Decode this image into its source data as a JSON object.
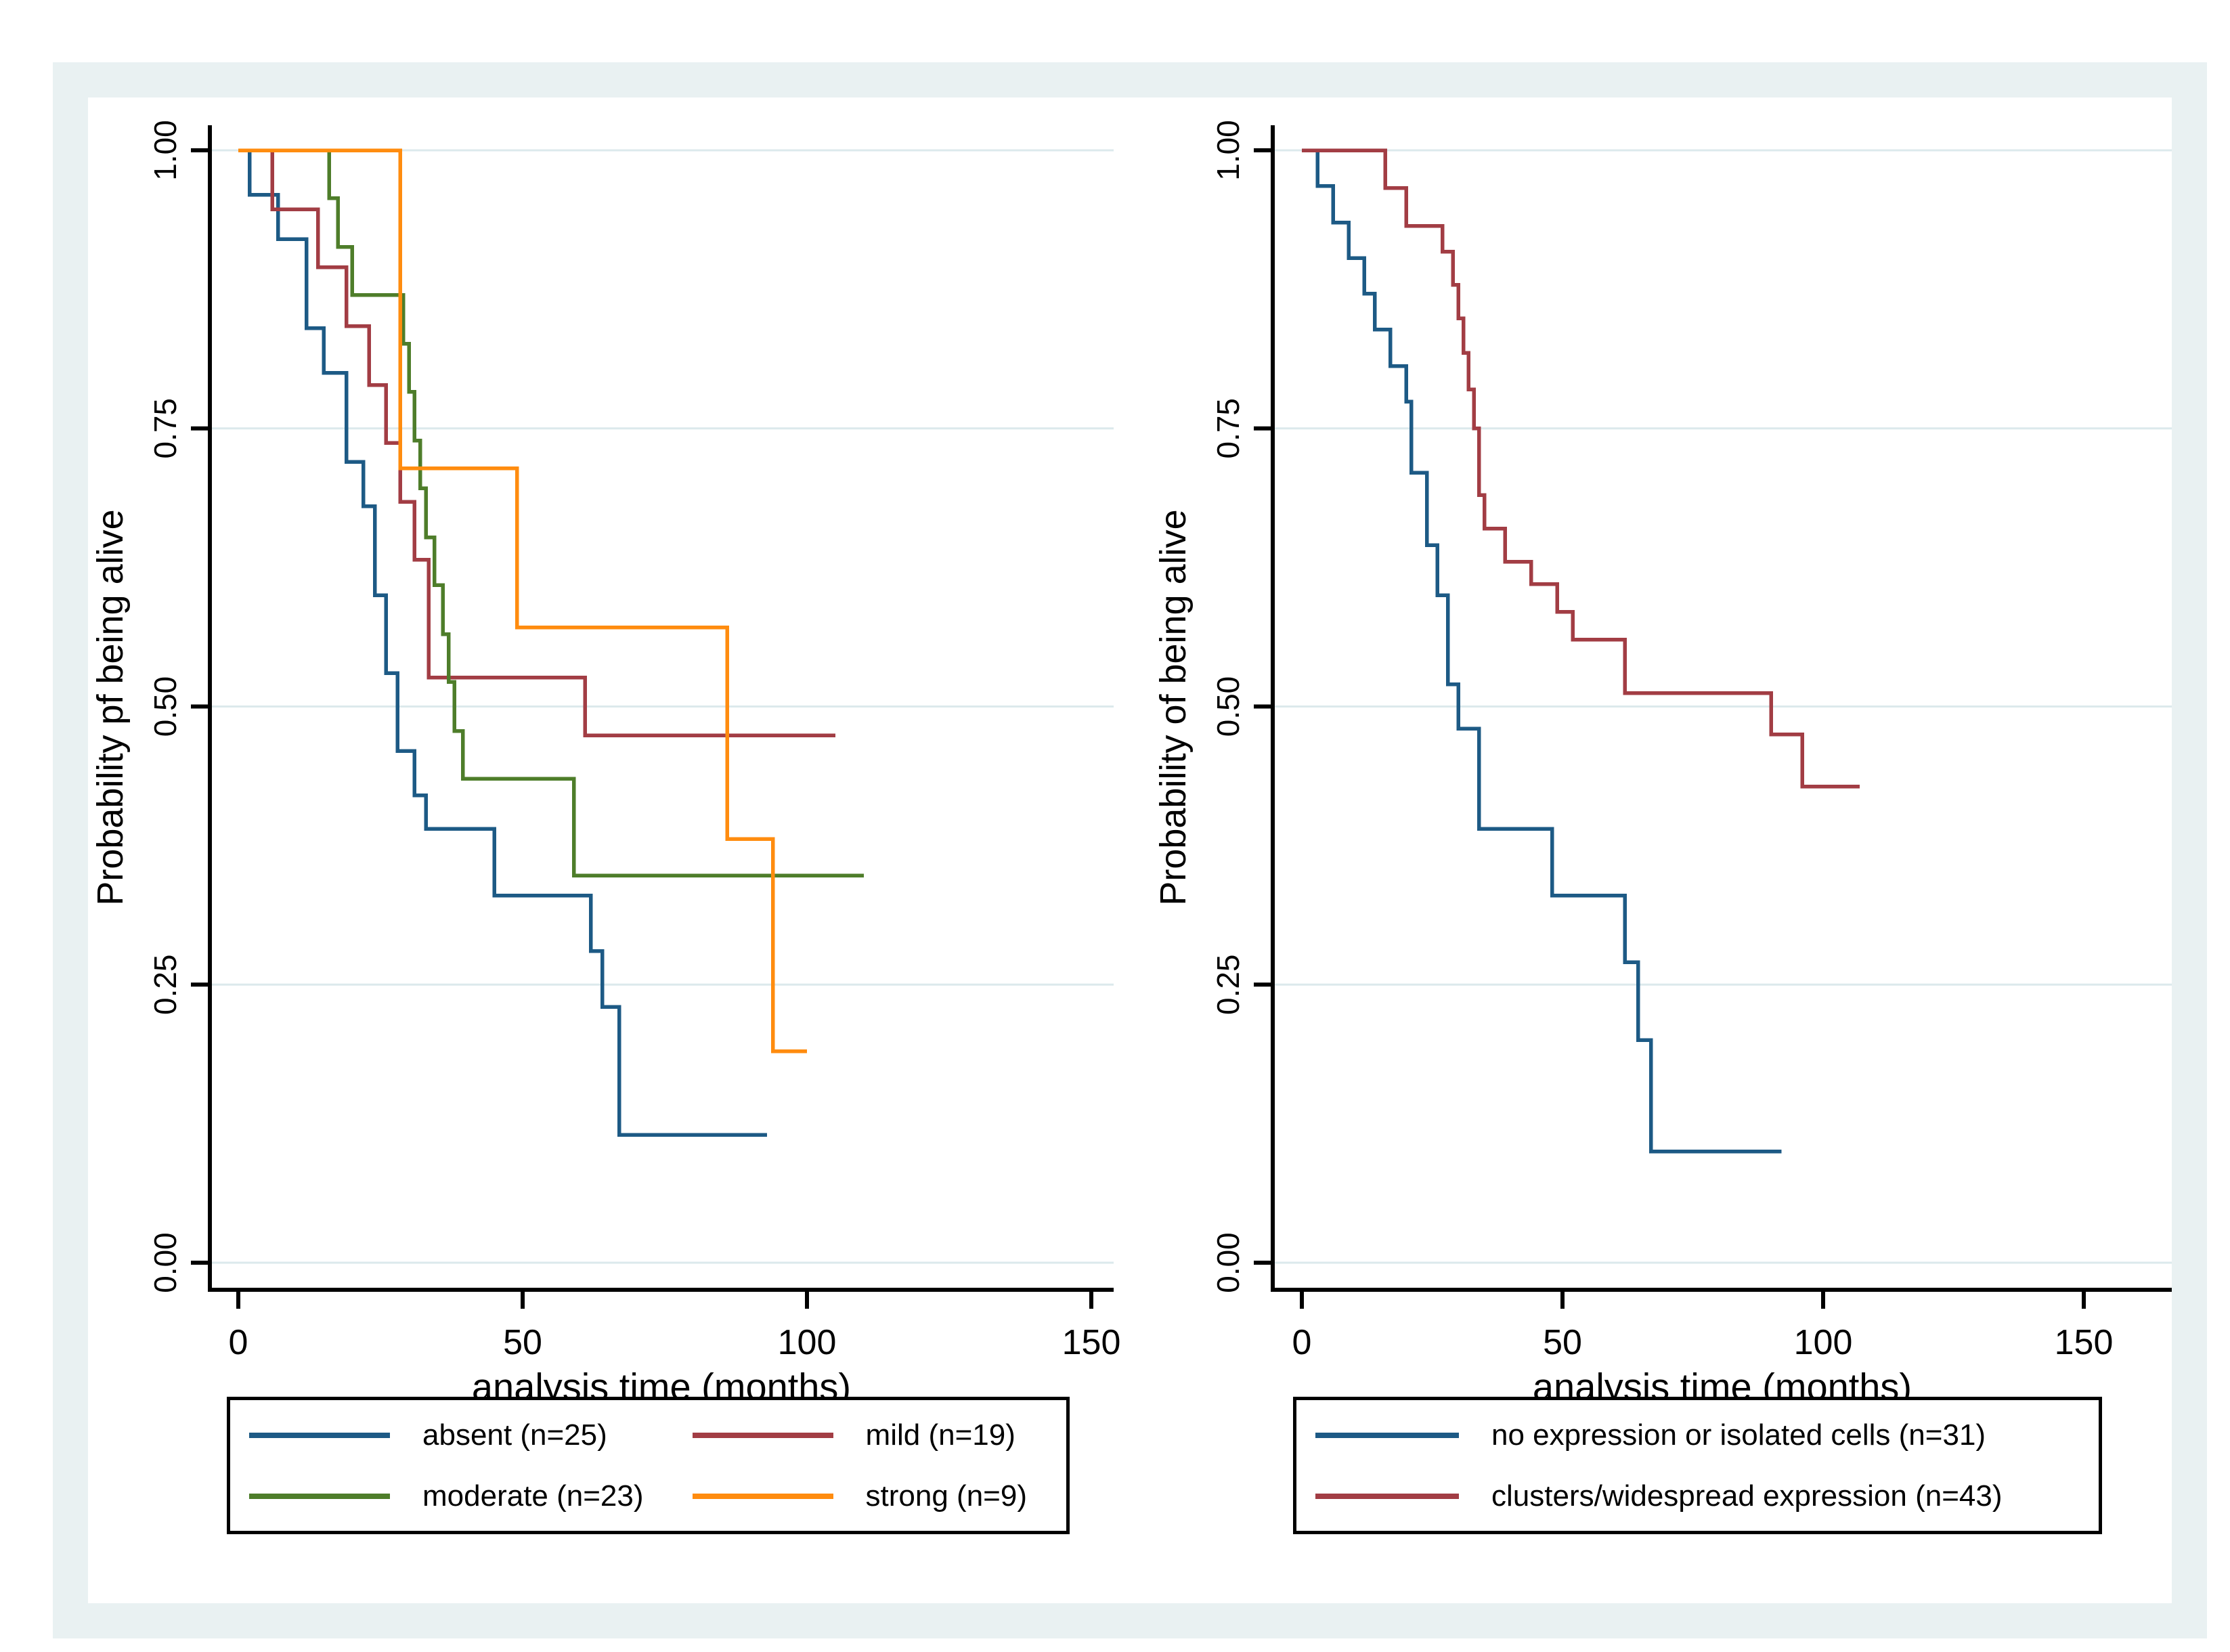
{
  "figure": {
    "background_color": "#ffffff",
    "frame_color": "#e9f1f2",
    "plot_background": "#ffffff",
    "grid_color": "#dce9ec",
    "axis_color": "#000000",
    "text_color": "#000000"
  },
  "chart_data": [
    {
      "type": "line",
      "subtype": "kaplan-meier-step",
      "title": "",
      "xlabel": "analysis time (months)",
      "ylabel": "Probability pf being alive",
      "xlim": [
        0,
        154
      ],
      "ylim": [
        0,
        1
      ],
      "xticks": [
        0,
        50,
        100,
        150
      ],
      "ytick_labels": [
        "0.00",
        "0.25",
        "0.50",
        "0.75",
        "1.00"
      ],
      "ytick_values": [
        0,
        0.25,
        0.5,
        0.75,
        1
      ],
      "grid": "horizontal",
      "legend_position": "bottom",
      "legend_columns": 2,
      "series": [
        {
          "name": "absent (n=25)",
          "n": 25,
          "color": "#1d5a85",
          "points": [
            [
              0,
              1.0
            ],
            [
              2,
              0.96
            ],
            [
              7,
              0.92
            ],
            [
              12,
              0.84
            ],
            [
              15,
              0.8
            ],
            [
              19,
              0.72
            ],
            [
              22,
              0.68
            ],
            [
              24,
              0.6
            ],
            [
              26,
              0.53
            ],
            [
              28,
              0.46
            ],
            [
              31,
              0.42
            ],
            [
              33,
              0.39
            ],
            [
              45,
              0.33
            ],
            [
              62,
              0.28
            ],
            [
              64,
              0.23
            ],
            [
              67,
              0.115
            ],
            [
              93,
              0.115
            ]
          ]
        },
        {
          "name": "mild (n=19)",
          "n": 19,
          "color": "#a23d44",
          "points": [
            [
              0,
              1.0
            ],
            [
              6,
              0.947
            ],
            [
              14,
              0.895
            ],
            [
              19,
              0.842
            ],
            [
              23,
              0.789
            ],
            [
              26,
              0.737
            ],
            [
              28.5,
              0.684
            ],
            [
              31,
              0.632
            ],
            [
              33.5,
              0.526
            ],
            [
              61,
              0.474
            ],
            [
              105,
              0.474
            ]
          ]
        },
        {
          "name": "moderate (n=23)",
          "n": 23,
          "color": "#4e7d2a",
          "points": [
            [
              0,
              1.0
            ],
            [
              16,
              0.957
            ],
            [
              17.5,
              0.913
            ],
            [
              20,
              0.87
            ],
            [
              29,
              0.826
            ],
            [
              30,
              0.783
            ],
            [
              31,
              0.739
            ],
            [
              32,
              0.696
            ],
            [
              33,
              0.652
            ],
            [
              34.5,
              0.609
            ],
            [
              36,
              0.565
            ],
            [
              37,
              0.522
            ],
            [
              38,
              0.478
            ],
            [
              39.5,
              0.435
            ],
            [
              59,
              0.348
            ],
            [
              110,
              0.348
            ]
          ]
        },
        {
          "name": "strong (n=9)",
          "n": 9,
          "color": "#ff8c0f",
          "points": [
            [
              0,
              1.0
            ],
            [
              28.5,
              0.714
            ],
            [
              49,
              0.571
            ],
            [
              86,
              0.381
            ],
            [
              94,
              0.19
            ],
            [
              100,
              0.19
            ]
          ]
        }
      ]
    },
    {
      "type": "line",
      "subtype": "kaplan-meier-step",
      "title": "",
      "xlabel": "analysis time (months)",
      "ylabel": "Probability of being alive",
      "xlim": [
        0,
        167
      ],
      "ylim": [
        0,
        1
      ],
      "xticks": [
        0,
        50,
        100,
        150
      ],
      "ytick_labels": [
        "0.00",
        "0.25",
        "0.50",
        "0.75",
        "1.00"
      ],
      "ytick_values": [
        0,
        0.25,
        0.5,
        0.75,
        1
      ],
      "grid": "horizontal",
      "legend_position": "bottom",
      "legend_columns": 1,
      "series": [
        {
          "name": "no expression or isolated cells (n=31)",
          "n": 31,
          "color": "#1d5a85",
          "points": [
            [
              0,
              1.0
            ],
            [
              3,
              0.968
            ],
            [
              6,
              0.935
            ],
            [
              9,
              0.903
            ],
            [
              12,
              0.871
            ],
            [
              14,
              0.839
            ],
            [
              17,
              0.806
            ],
            [
              20,
              0.774
            ],
            [
              21,
              0.71
            ],
            [
              24,
              0.645
            ],
            [
              26,
              0.6
            ],
            [
              28,
              0.52
            ],
            [
              30,
              0.48
            ],
            [
              34,
              0.39
            ],
            [
              48,
              0.33
            ],
            [
              62,
              0.27
            ],
            [
              64.5,
              0.2
            ],
            [
              67,
              0.1
            ],
            [
              92,
              0.1
            ]
          ]
        },
        {
          "name": "clusters/widespread expression (n=43)",
          "n": 43,
          "color": "#a23d44",
          "points": [
            [
              0,
              1.0
            ],
            [
              16,
              0.966
            ],
            [
              20,
              0.932
            ],
            [
              27,
              0.909
            ],
            [
              29,
              0.879
            ],
            [
              30,
              0.849
            ],
            [
              31,
              0.818
            ],
            [
              32,
              0.785
            ],
            [
              33,
              0.75
            ],
            [
              34,
              0.69
            ],
            [
              35,
              0.66
            ],
            [
              39,
              0.63
            ],
            [
              44,
              0.61
            ],
            [
              49,
              0.585
            ],
            [
              52,
              0.56
            ],
            [
              62,
              0.512
            ],
            [
              90,
              0.475
            ],
            [
              96,
              0.428
            ],
            [
              107,
              0.428
            ]
          ]
        }
      ]
    }
  ]
}
